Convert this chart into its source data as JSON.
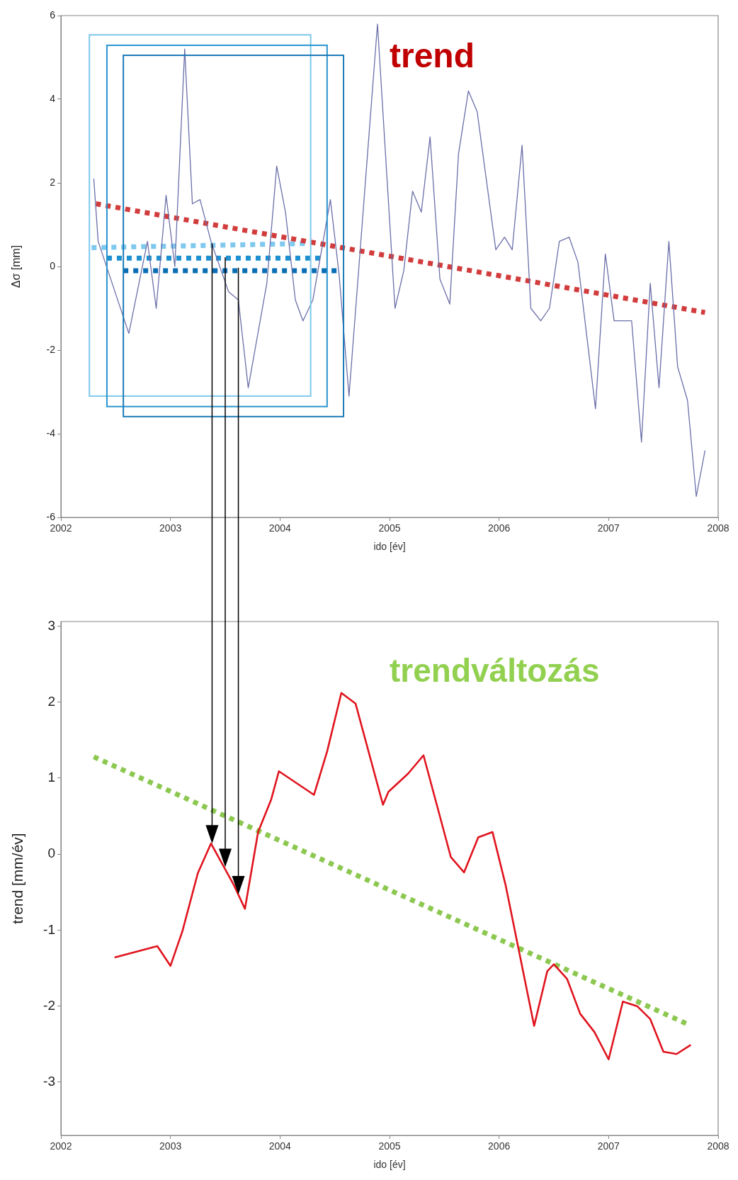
{
  "chart_data": [
    {
      "type": "line",
      "xlabel": "ido [év]",
      "ylabel": "Δσ [mm]",
      "xlim": [
        2002,
        2008
      ],
      "xticks": [
        2002,
        2003,
        2004,
        2005,
        2006,
        2007,
        2008
      ],
      "ylim": [
        -6,
        6
      ],
      "yticks": [
        -6,
        -4,
        -2,
        0,
        2,
        4,
        6
      ],
      "marker": "none",
      "annotations": [
        "trend"
      ],
      "series": [
        {
          "color": "#6b6fa8",
          "line_style": "solid",
          "x": [
            2002.3,
            2002.34,
            2002.62,
            2002.79,
            2002.87,
            2002.96,
            2003.04,
            2003.13,
            2003.2,
            2003.27,
            2003.37,
            2003.53,
            2003.62,
            2003.71,
            2003.88,
            2003.97,
            2004.05,
            2004.14,
            2004.21,
            2004.3,
            2004.46,
            2004.54,
            2004.63,
            2004.89,
            2005.05,
            2005.13,
            2005.21,
            2005.29,
            2005.37,
            2005.46,
            2005.55,
            2005.63,
            2005.72,
            2005.8,
            2005.97,
            2006.05,
            2006.12,
            2006.21,
            2006.29,
            2006.38,
            2006.46,
            2006.55,
            2006.64,
            2006.72,
            2006.88,
            2006.97,
            2007.05,
            2007.13,
            2007.21,
            2007.3,
            2007.38,
            2007.46,
            2007.55,
            2007.63,
            2007.72,
            2007.8,
            2007.88
          ],
          "values": [
            2.1,
            0.6,
            -1.6,
            0.6,
            -1.0,
            1.7,
            0.0,
            5.2,
            1.5,
            1.6,
            0.6,
            -0.6,
            -0.8,
            -2.9,
            -0.4,
            2.4,
            1.3,
            -0.8,
            -1.3,
            -0.8,
            1.6,
            -0.2,
            -3.1,
            5.8,
            -1.0,
            -0.1,
            1.8,
            1.3,
            3.1,
            -0.3,
            -0.9,
            2.7,
            4.2,
            3.7,
            0.4,
            0.7,
            0.4,
            2.9,
            -1.0,
            -1.3,
            -1.0,
            0.6,
            0.7,
            0.1,
            -3.4,
            0.3,
            -1.3,
            -1.3,
            -1.3,
            -4.2,
            -0.4,
            -2.9,
            0.6,
            -2.4,
            -3.2,
            -5.5,
            -4.4
          ]
        },
        {
          "color": "#d23c3c",
          "line_style": "dotted",
          "x": [
            2002.32,
            2007.88
          ],
          "values": [
            1.5,
            -1.1
          ]
        },
        {
          "color": "#7fc8ee",
          "line_style": "dotted",
          "x": [
            2002.28,
            2004.26
          ],
          "values": [
            0.45,
            0.55
          ]
        },
        {
          "color": "#1e90d0",
          "line_style": "dotted",
          "x": [
            2002.42,
            2004.4
          ],
          "values": [
            0.2,
            0.2
          ]
        },
        {
          "color": "#0a6eb4",
          "line_style": "dotted",
          "x": [
            2002.57,
            2004.54
          ],
          "values": [
            -0.1,
            -0.1
          ]
        }
      ]
    },
    {
      "type": "line",
      "xlabel": "ido [év]",
      "ylabel": "trend [mm/év]",
      "xlim": [
        2002,
        2008
      ],
      "xticks": [
        2002,
        2003,
        2004,
        2005,
        2006,
        2007,
        2008
      ],
      "ylim": [
        -3.7,
        3.06
      ],
      "yticks": [
        -3,
        -2,
        -1,
        0,
        1,
        2,
        3
      ],
      "marker": "none",
      "annotations": [
        "trendváltozás"
      ],
      "series": [
        {
          "color": "#e0141e",
          "line_style": "solid",
          "x": [
            2002.49,
            2002.88,
            2003.0,
            2003.11,
            2003.25,
            2003.37,
            2003.58,
            2003.68,
            2003.8,
            2003.92,
            2003.99,
            2004.31,
            2004.43,
            2004.56,
            2004.69,
            2004.94,
            2004.99,
            2005.17,
            2005.31,
            2005.56,
            2005.68,
            2005.81,
            2005.94,
            2006.06,
            2006.32,
            2006.44,
            2006.5,
            2006.62,
            2006.74,
            2006.87,
            2007.0,
            2007.13,
            2007.26,
            2007.38,
            2007.5,
            2007.62,
            2007.75
          ],
          "values": [
            -1.36,
            -1.21,
            -1.47,
            -1.01,
            -0.25,
            0.14,
            -0.41,
            -0.72,
            0.29,
            0.72,
            1.09,
            0.78,
            1.35,
            2.12,
            1.98,
            0.65,
            0.82,
            1.06,
            1.3,
            -0.04,
            -0.24,
            0.22,
            0.29,
            -0.41,
            -2.26,
            -1.54,
            -1.45,
            -1.64,
            -2.1,
            -2.34,
            -2.7,
            -1.94,
            -2.0,
            -2.17,
            -2.6,
            -2.63,
            -2.51
          ]
        },
        {
          "color": "#8cc850",
          "line_style": "dotted",
          "x": [
            2002.3,
            2007.71
          ],
          "values": [
            1.28,
            -2.23
          ]
        }
      ]
    }
  ]
}
